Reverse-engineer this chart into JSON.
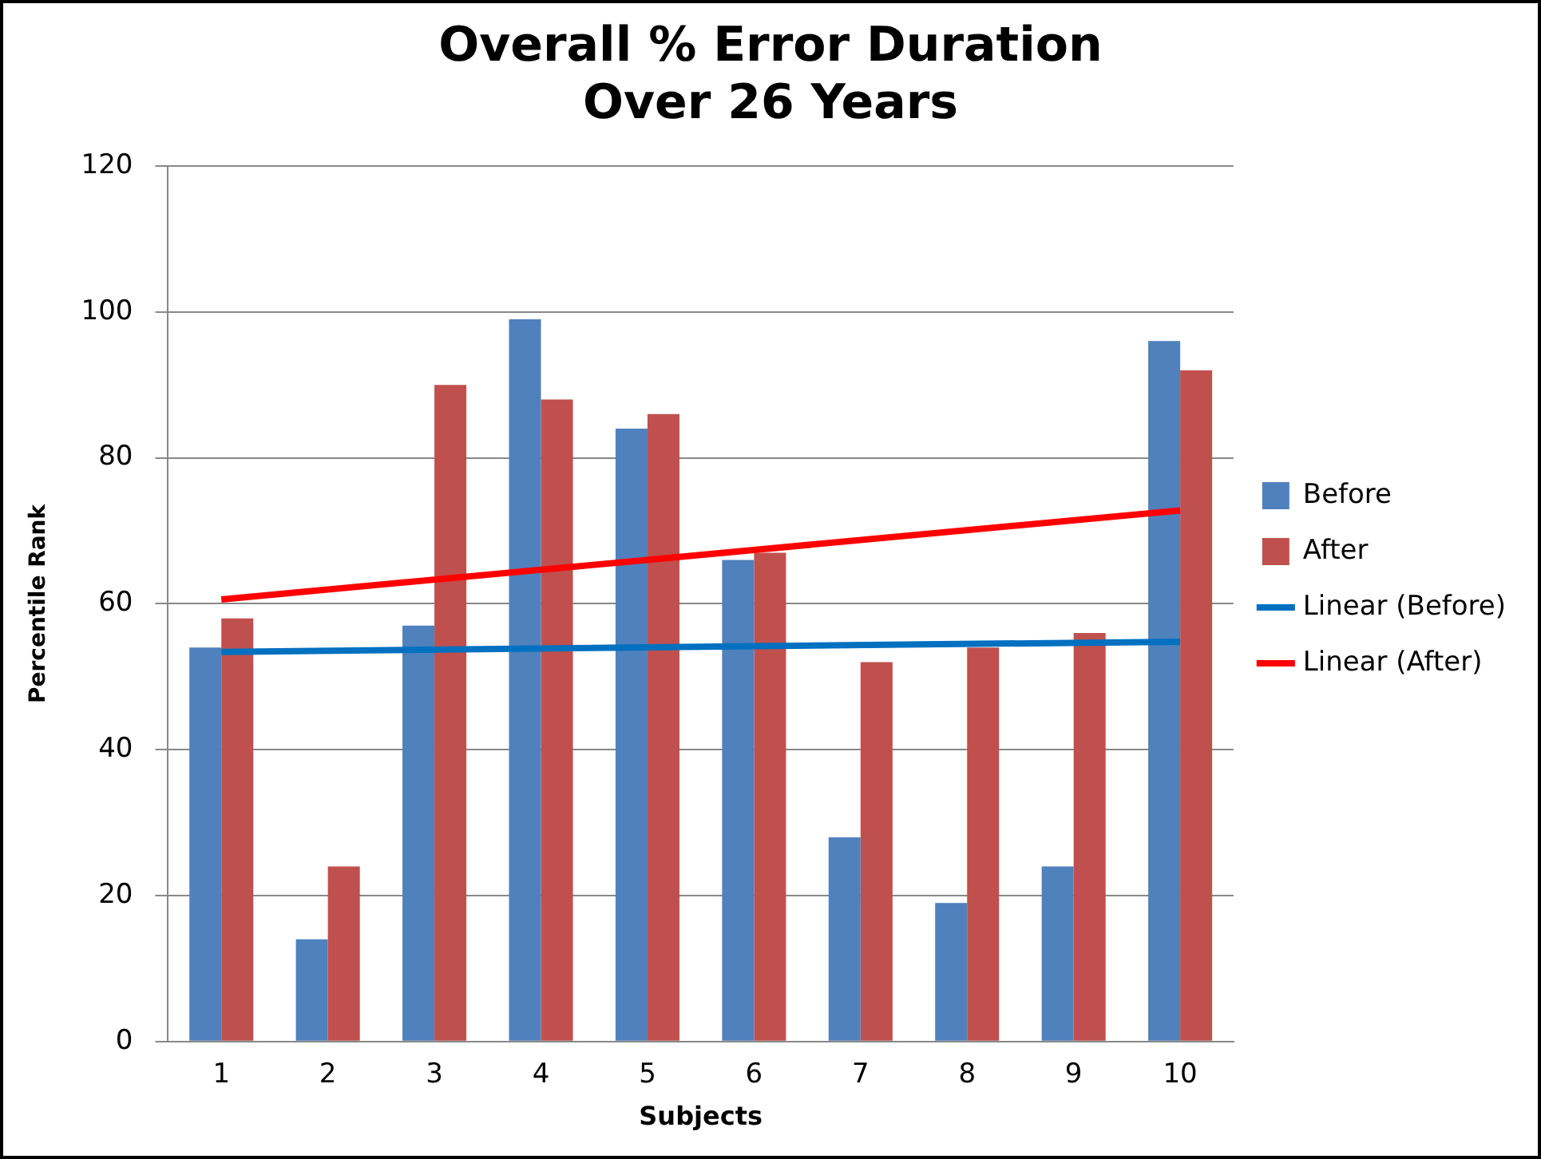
{
  "chart_data": {
    "type": "bar",
    "title": [
      "Overall % Error Duration",
      "Over 26 Years"
    ],
    "xlabel": "Subjects",
    "ylabel": "Percentile Rank",
    "categories": [
      "1",
      "2",
      "3",
      "4",
      "5",
      "6",
      "7",
      "8",
      "9",
      "10"
    ],
    "series": [
      {
        "name": "Before",
        "color": "#4f81bd",
        "values": [
          54,
          14,
          57,
          99,
          84,
          66,
          28,
          19,
          24,
          96
        ]
      },
      {
        "name": "After",
        "color": "#c0504d",
        "values": [
          58,
          24,
          90,
          88,
          86,
          67,
          52,
          54,
          56,
          92
        ]
      },
      {
        "name": "Linear (Before)",
        "type": "line",
        "color": "#0070c0",
        "x": [
          "1",
          "10"
        ],
        "values": [
          53.4,
          54.8
        ]
      },
      {
        "name": "Linear (After)",
        "type": "line",
        "color": "#ff0000",
        "x": [
          "1",
          "10"
        ],
        "values": [
          60.6,
          72.8
        ]
      }
    ],
    "ylim": [
      0,
      120
    ],
    "yticks": [
      0,
      20,
      40,
      60,
      80,
      100,
      120
    ],
    "grid": "y",
    "legend": "right",
    "marker": "none"
  }
}
